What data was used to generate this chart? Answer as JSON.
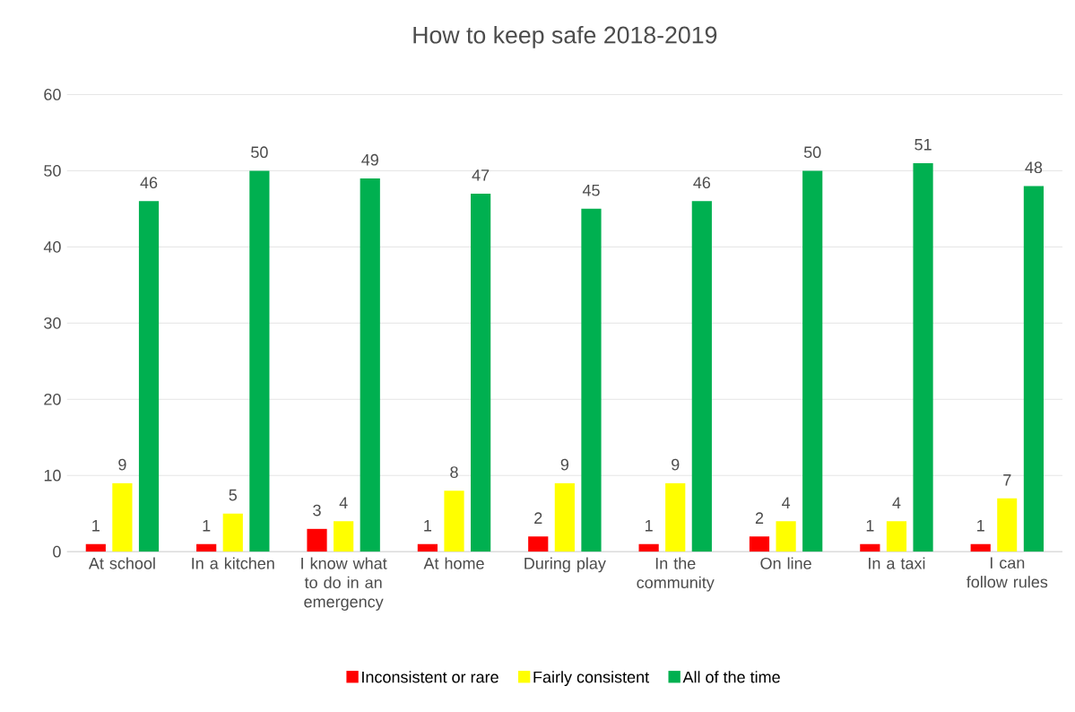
{
  "chart_data": {
    "type": "bar",
    "title": "How to keep safe  2018-2019",
    "categories": [
      "At school",
      "In a kitchen",
      "I know what to do in an emergency",
      "At home",
      "During play",
      "In the community",
      "On line",
      "In a taxi",
      "I can follow rules"
    ],
    "series": [
      {
        "name": "Inconsistent or rare",
        "color": "#ff0000",
        "values": [
          1,
          1,
          3,
          1,
          2,
          1,
          2,
          1,
          1
        ]
      },
      {
        "name": "Fairly consistent",
        "color": "#ffff00",
        "values": [
          9,
          5,
          4,
          8,
          9,
          9,
          4,
          4,
          7
        ]
      },
      {
        "name": "All of the time",
        "color": "#00b050",
        "values": [
          46,
          50,
          49,
          47,
          45,
          46,
          50,
          51,
          48
        ]
      }
    ],
    "ylim": [
      0,
      60
    ],
    "yticks": [
      0,
      10,
      20,
      30,
      40,
      50,
      60
    ],
    "grid": "y",
    "legend": "bottom",
    "data_labels": true
  }
}
